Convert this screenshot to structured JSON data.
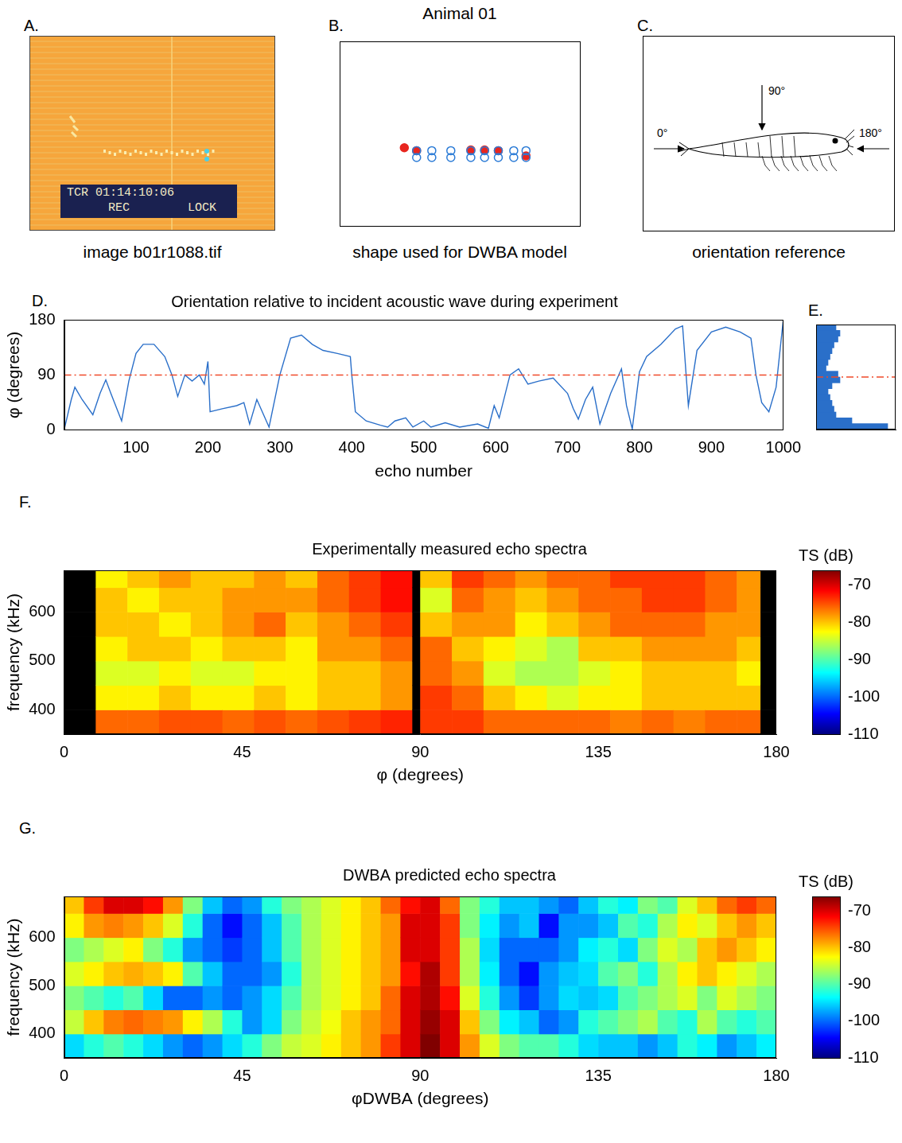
{
  "title": "Animal 01",
  "chart_data": [
    {
      "type": "image",
      "panel": "A.",
      "caption": "image b01r1088.tif",
      "annotations": [
        "TCR 01:14:10:06",
        "REC",
        "LOCK"
      ]
    },
    {
      "type": "scatter",
      "panel": "B.",
      "caption": "shape used for DWBA model",
      "xlim": [
        0,
        100
      ],
      "ylim": [
        0,
        100
      ],
      "tick_labels": false,
      "grid": false,
      "series": [
        {
          "color": "#2b7bd6",
          "marker": "open_circle",
          "x": [
            32.1,
            38.4,
            46.3,
            54.6,
            60.3,
            66.0,
            72.4,
            77.5
          ],
          "values": [
            40.8,
            40.8,
            40.8,
            40.8,
            40.8,
            40.8,
            40.8,
            40.8
          ]
        },
        {
          "color": "#2b7bd6",
          "marker": "open_circle",
          "x": [
            32.1,
            38.4,
            46.3,
            54.6,
            60.3,
            66.0,
            72.4,
            77.5
          ],
          "values": [
            37.1,
            37.1,
            37.1,
            37.1,
            37.1,
            37.1,
            37.1,
            37.1
          ]
        },
        {
          "color": "#e8261f",
          "marker": "circle",
          "x": [
            27.0,
            32.1,
            54.6,
            60.3,
            66.0,
            77.5
          ],
          "values": [
            42.4,
            40.8,
            41.2,
            41.2,
            40.8,
            38.0
          ]
        }
      ]
    },
    {
      "type": "diagram",
      "panel": "C.",
      "caption": "orientation reference",
      "annotations": [
        "0°",
        "90°",
        "180°"
      ]
    },
    {
      "type": "line",
      "panel": "D.",
      "title": "Orientation relative to incident acoustic wave during experiment",
      "x_label": "echo number",
      "y_label": "φ (degrees)",
      "color": "#2a6fc9",
      "grid": false,
      "x": [
        1,
        10,
        15,
        25,
        40,
        50,
        58,
        65,
        80,
        90,
        100,
        110,
        125,
        140,
        150,
        158,
        168,
        178,
        188,
        195,
        200,
        203,
        220,
        240,
        250,
        258,
        268,
        285,
        300,
        315,
        330,
        345,
        360,
        380,
        398,
        400,
        405,
        420,
        440,
        450,
        460,
        475,
        485,
        500,
        510,
        530,
        550,
        575,
        590,
        598,
        605,
        620,
        632,
        645,
        660,
        680,
        700,
        708,
        715,
        725,
        735,
        745,
        760,
        775,
        782,
        790,
        800,
        810,
        830,
        850,
        860,
        868,
        880,
        900,
        920,
        940,
        955,
        962,
        970,
        980,
        990,
        1000
      ],
      "values": [
        5,
        50,
        70,
        50,
        25,
        60,
        82,
        60,
        15,
        80,
        125,
        140,
        140,
        120,
        90,
        55,
        90,
        80,
        90,
        75,
        112,
        30,
        35,
        40,
        45,
        10,
        50,
        5,
        90,
        150,
        155,
        140,
        130,
        125,
        120,
        90,
        30,
        15,
        8,
        5,
        15,
        20,
        5,
        15,
        5,
        12,
        5,
        10,
        3,
        40,
        20,
        90,
        100,
        75,
        80,
        85,
        60,
        35,
        18,
        50,
        70,
        10,
        60,
        100,
        40,
        2,
        95,
        120,
        140,
        165,
        170,
        40,
        130,
        160,
        168,
        160,
        150,
        90,
        45,
        30,
        70,
        180
      ],
      "xlim": [
        0,
        1000
      ],
      "xticks": [
        100,
        200,
        300,
        400,
        500,
        600,
        700,
        800,
        900,
        1000
      ],
      "ylim": [
        0,
        180
      ],
      "yticks": [
        0,
        90,
        180
      ],
      "reference_line": {
        "value": 90,
        "color": "#f04a2a",
        "line_style": "dashdot"
      }
    },
    {
      "type": "histogram",
      "panel": "E.",
      "orientation": "horizontal",
      "color": "#2a6fc9",
      "tick_labels": false,
      "grid": false,
      "bins": [
        0,
        10,
        20,
        30,
        40,
        50,
        60,
        70,
        80,
        90,
        100,
        110,
        120,
        130,
        140,
        150,
        160,
        170,
        180
      ],
      "counts": [
        180,
        90,
        50,
        45,
        40,
        35,
        30,
        40,
        60,
        55,
        25,
        30,
        35,
        40,
        45,
        55,
        60,
        50
      ],
      "xlim": [
        0,
        200
      ],
      "ylim": [
        0,
        180
      ],
      "reference_line": {
        "value": 90,
        "color": "#f04a2a",
        "line_style": "dashdot"
      }
    },
    {
      "type": "heatmap",
      "panel": "F.",
      "title": "Experimentally measured echo spectra",
      "x_label": "φ (degrees)",
      "y_label": "frequency (kHz)",
      "grid": false,
      "xlim": [
        0,
        180
      ],
      "xticks": [
        0,
        45,
        90,
        135,
        180
      ],
      "ylim": [
        350,
        685
      ],
      "yticks": [
        400,
        500,
        600
      ],
      "x_edges": [
        0,
        8,
        16,
        24,
        32,
        40,
        48,
        56,
        64,
        72,
        80,
        88,
        90,
        98,
        106,
        114,
        122,
        130,
        138,
        146,
        154,
        162,
        170,
        176,
        180
      ],
      "y_edges": [
        350,
        400,
        450,
        500,
        550,
        600,
        650,
        685
      ],
      "cells": [
        [
          null,
          null,
          null,
          null,
          null,
          null,
          null
        ],
        [
          -76,
          -82,
          -84,
          -82,
          -80,
          -80,
          -82
        ],
        [
          -76,
          -82,
          -84,
          -80,
          -80,
          -82,
          -80
        ],
        [
          -75,
          -80,
          -82,
          -80,
          -82,
          -80,
          -78
        ],
        [
          -75,
          -82,
          -84,
          -82,
          -80,
          -80,
          -80
        ],
        [
          -76,
          -82,
          -84,
          -80,
          -78,
          -78,
          -80
        ],
        [
          -75,
          -80,
          -82,
          -80,
          -76,
          -78,
          -78
        ],
        [
          -76,
          -82,
          -82,
          -82,
          -80,
          -78,
          -80
        ],
        [
          -75,
          -80,
          -80,
          -78,
          -78,
          -76,
          -76
        ],
        [
          -74,
          -80,
          -80,
          -78,
          -76,
          -74,
          -74
        ],
        [
          -73,
          -78,
          -78,
          -76,
          -74,
          -72,
          -72
        ],
        [
          null,
          null,
          null,
          null,
          null,
          null,
          null
        ],
        [
          -74,
          -74,
          -76,
          -76,
          -80,
          -84,
          -80
        ],
        [
          -74,
          -76,
          -78,
          -80,
          -78,
          -76,
          -74
        ],
        [
          -76,
          -80,
          -84,
          -82,
          -78,
          -78,
          -76
        ],
        [
          -76,
          -82,
          -86,
          -84,
          -82,
          -80,
          -78
        ],
        [
          -76,
          -84,
          -86,
          -86,
          -80,
          -78,
          -76
        ],
        [
          -76,
          -82,
          -84,
          -80,
          -78,
          -76,
          -76
        ],
        [
          -77,
          -82,
          -82,
          -80,
          -76,
          -76,
          -74
        ],
        [
          -76,
          -80,
          -80,
          -78,
          -76,
          -74,
          -74
        ],
        [
          -77,
          -80,
          -80,
          -78,
          -76,
          -74,
          -74
        ],
        [
          -76,
          -80,
          -80,
          -78,
          -78,
          -76,
          -76
        ],
        [
          -76,
          -80,
          -82,
          -80,
          -78,
          -78,
          -78
        ],
        [
          null,
          null,
          null,
          null,
          null,
          null,
          null
        ]
      ],
      "color_label": "TS (dB)",
      "color_range": [
        -110,
        -66
      ],
      "color_ticks": [
        -110,
        -100,
        -90,
        -80,
        -70
      ]
    },
    {
      "type": "heatmap",
      "panel": "G.",
      "title": "DWBA predicted echo spectra",
      "x_label": "φDWBA (degrees)",
      "y_label": "frequency (kHz)",
      "grid": false,
      "xlim": [
        0,
        180
      ],
      "xticks": [
        0,
        45,
        90,
        135,
        180
      ],
      "ylim": [
        350,
        685
      ],
      "yticks": [
        400,
        500,
        600
      ],
      "x_edges": [
        0,
        5,
        10,
        15,
        20,
        25,
        30,
        35,
        40,
        45,
        50,
        55,
        60,
        65,
        70,
        75,
        80,
        85,
        90,
        95,
        100,
        105,
        110,
        115,
        120,
        125,
        130,
        135,
        140,
        145,
        150,
        155,
        160,
        165,
        170,
        175,
        180
      ],
      "y_edges": [
        350,
        400,
        450,
        500,
        550,
        600,
        650,
        685
      ],
      "cells": [
        [
          -95,
          -85,
          -88,
          -84,
          -88,
          -82,
          -80
        ],
        [
          -92,
          -80,
          -90,
          -82,
          -86,
          -78,
          -74
        ],
        [
          -90,
          -77,
          -92,
          -80,
          -84,
          -77,
          -70
        ],
        [
          -92,
          -76,
          -90,
          -79,
          -82,
          -78,
          -70
        ],
        [
          -95,
          -77,
          -95,
          -80,
          -88,
          -80,
          -72
        ],
        [
          -98,
          -78,
          -100,
          -82,
          -92,
          -84,
          -78
        ],
        [
          -100,
          -82,
          -100,
          -90,
          -98,
          -92,
          -88
        ],
        [
          -98,
          -86,
          -98,
          -96,
          -100,
          -100,
          -96
        ],
        [
          -95,
          -92,
          -100,
          -100,
          -102,
          -104,
          -100
        ],
        [
          -92,
          -98,
          -98,
          -100,
          -100,
          -100,
          -98
        ],
        [
          -88,
          -95,
          -95,
          -98,
          -96,
          -96,
          -92
        ],
        [
          -85,
          -88,
          -90,
          -92,
          -90,
          -90,
          -88
        ],
        [
          -84,
          -85,
          -86,
          -86,
          -86,
          -86,
          -86
        ],
        [
          -82,
          -83,
          -84,
          -84,
          -84,
          -84,
          -84
        ],
        [
          -80,
          -80,
          -82,
          -82,
          -82,
          -82,
          -82
        ],
        [
          -78,
          -78,
          -80,
          -80,
          -80,
          -80,
          -80
        ],
        [
          -74,
          -76,
          -76,
          -78,
          -78,
          -78,
          -76
        ],
        [
          -70,
          -70,
          -70,
          -72,
          -70,
          -70,
          -72
        ],
        [
          -66,
          -67,
          -68,
          -68,
          -70,
          -70,
          -70
        ],
        [
          -70,
          -70,
          -72,
          -74,
          -74,
          -74,
          -76
        ],
        [
          -78,
          -80,
          -84,
          -86,
          -86,
          -88,
          -88
        ],
        [
          -84,
          -88,
          -92,
          -94,
          -95,
          -94,
          -92
        ],
        [
          -88,
          -94,
          -98,
          -100,
          -100,
          -98,
          -96
        ],
        [
          -90,
          -96,
          -102,
          -104,
          -100,
          -96,
          -96
        ],
        [
          -90,
          -100,
          -98,
          -98,
          -100,
          -104,
          -98
        ],
        [
          -92,
          -98,
          -95,
          -96,
          -98,
          -98,
          -100
        ],
        [
          -95,
          -92,
          -96,
          -95,
          -94,
          -98,
          -96
        ],
        [
          -96,
          -90,
          -95,
          -90,
          -92,
          -96,
          -92
        ],
        [
          -96,
          -88,
          -90,
          -88,
          -95,
          -90,
          -94
        ],
        [
          -98,
          -86,
          -88,
          -92,
          -88,
          -92,
          -88
        ],
        [
          -96,
          -90,
          -86,
          -86,
          -84,
          -86,
          -90
        ],
        [
          -92,
          -92,
          -84,
          -82,
          -86,
          -82,
          -84
        ],
        [
          -94,
          -86,
          -88,
          -80,
          -80,
          -84,
          -80
        ],
        [
          -98,
          -90,
          -84,
          -82,
          -78,
          -80,
          -76
        ],
        [
          -96,
          -92,
          -86,
          -84,
          -80,
          -78,
          -74
        ],
        [
          -94,
          -90,
          -88,
          -86,
          -82,
          -80,
          -76
        ]
      ],
      "color_label": "TS (dB)",
      "color_range": [
        -110,
        -66
      ],
      "color_ticks": [
        -110,
        -100,
        -90,
        -80,
        -70
      ]
    }
  ]
}
